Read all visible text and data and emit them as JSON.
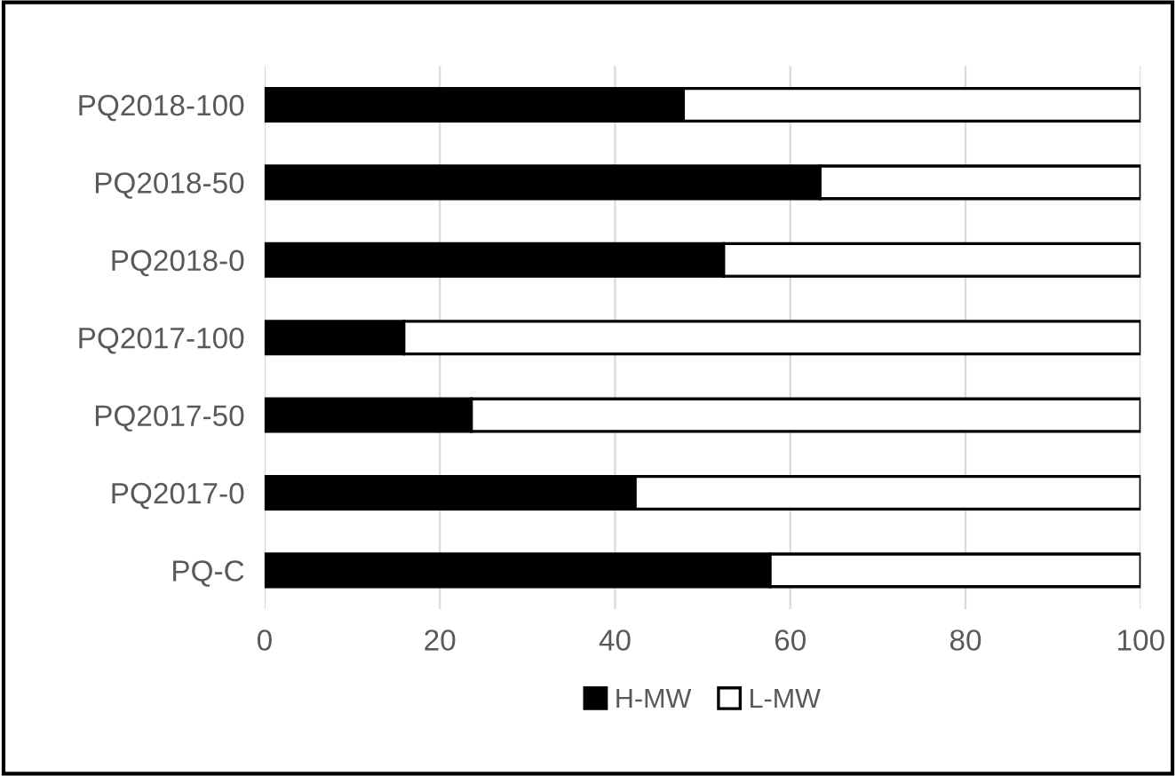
{
  "chart_data": {
    "type": "bar",
    "orientation": "horizontal",
    "stacked": true,
    "categories": [
      "PQ2018-100",
      "PQ2018-50",
      "PQ2018-0",
      "PQ2017-100",
      "PQ2017-50",
      "PQ2017-0",
      "PQ-C"
    ],
    "series": [
      {
        "name": "H-MW",
        "color": "#000000",
        "values": [
          47.8,
          63.4,
          52.4,
          15.9,
          23.6,
          42.3,
          57.7
        ]
      },
      {
        "name": "L-MW",
        "color": "#ffffff",
        "values": [
          52.2,
          36.6,
          47.6,
          84.1,
          76.4,
          57.7,
          42.3
        ]
      }
    ],
    "xlim": [
      0,
      100
    ],
    "xticks": [
      0,
      20,
      40,
      60,
      80,
      100
    ],
    "grid": "x",
    "legend": "bottom"
  }
}
